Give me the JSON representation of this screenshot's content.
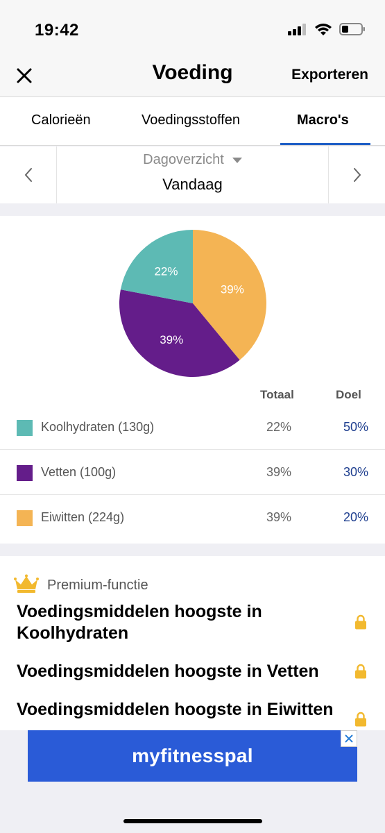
{
  "status": {
    "time": "19:42"
  },
  "nav": {
    "title": "Voeding",
    "export_label": "Exporteren"
  },
  "tabs": [
    {
      "label": "Calorieën",
      "active": false
    },
    {
      "label": "Voedingsstoffen",
      "active": false
    },
    {
      "label": "Macro's",
      "active": true
    }
  ],
  "day": {
    "label": "Dagoverzicht",
    "value": "Vandaag"
  },
  "table": {
    "col_total": "Totaal",
    "col_goal": "Doel",
    "rows": [
      {
        "name": "Koolhydraten (130g)",
        "total": "22%",
        "goal": "50%",
        "color": "#5dbab4"
      },
      {
        "name": "Vetten (100g)",
        "total": "39%",
        "goal": "30%",
        "color": "#641d8a"
      },
      {
        "name": "Eiwitten (224g)",
        "total": "39%",
        "goal": "20%",
        "color": "#f4b454"
      }
    ]
  },
  "chart_data": {
    "type": "pie",
    "categories": [
      "Koolhydraten",
      "Vetten",
      "Eiwitten"
    ],
    "values": [
      22,
      39,
      39
    ],
    "labels": [
      "22%",
      "39%",
      "39%"
    ],
    "colors": [
      "#5dbab4",
      "#641d8a",
      "#f4b454"
    ]
  },
  "premium": {
    "label": "Premium-functie",
    "items": [
      "Voedingsmiddelen hoogste in Koolhydraten",
      "Voedingsmiddelen hoogste in Vetten",
      "Voedingsmiddelen hoogste in Eiwitten"
    ]
  },
  "ad": {
    "text": "myfitnesspal"
  },
  "colors": {
    "accent": "#1f5fc6",
    "goal_text": "#1f3f8f",
    "lock": "#f2b92f"
  }
}
